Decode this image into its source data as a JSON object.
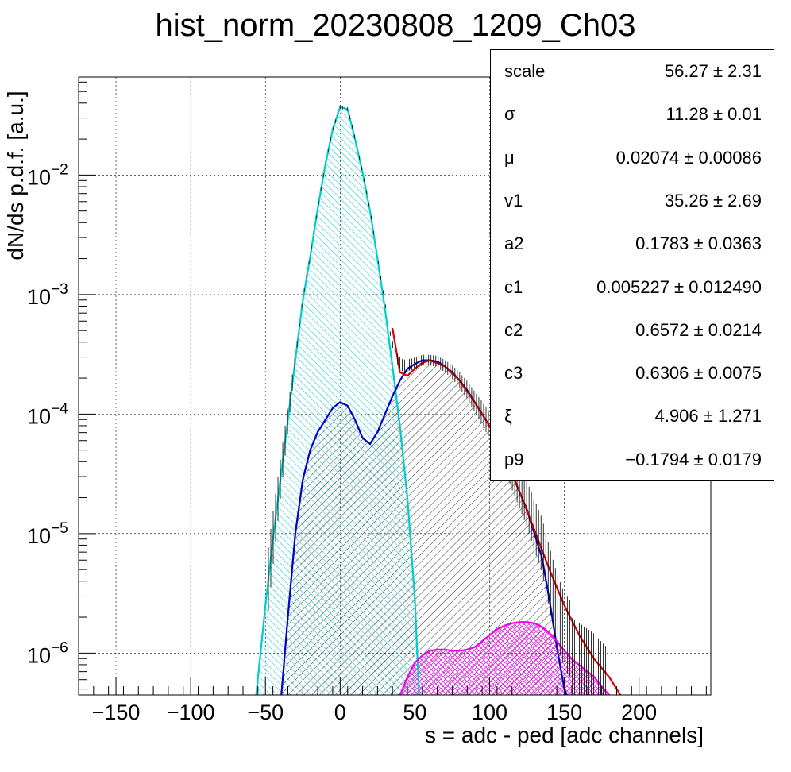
{
  "chart_data": {
    "type": "line",
    "title": "hist_norm_20230808_1209_Ch03",
    "xlabel": "s = adc - ped [adc channels]",
    "ylabel": "dN/ds p.d.f. [a.u.]",
    "xlim": [
      -175,
      248
    ],
    "ylim_log10": [
      -6.35,
      -1.18
    ],
    "log_y": true,
    "grid": true,
    "x_ticks": [
      -150,
      -100,
      -50,
      0,
      50,
      100,
      150,
      200
    ],
    "x_tick_labels": [
      "−150",
      "−100",
      "−50",
      "0",
      "50",
      "100",
      "150",
      "200"
    ],
    "y_ticks": [
      {
        "exp": -2,
        "base": "10",
        "power": "−2"
      },
      {
        "exp": -3,
        "base": "10",
        "power": "−3"
      },
      {
        "exp": -4,
        "base": "10",
        "power": "−4"
      },
      {
        "exp": -5,
        "base": "10",
        "power": "−5"
      },
      {
        "exp": -6,
        "base": "10",
        "power": "−6"
      }
    ],
    "series": [
      {
        "color": "#00cccc",
        "style": "hatched-fill",
        "points": [
          [
            -57,
            -6.45
          ],
          [
            -50,
            -5.6
          ],
          [
            -45,
            -5.05
          ],
          [
            -40,
            -4.55
          ],
          [
            -35,
            -4.05
          ],
          [
            -30,
            -3.55
          ],
          [
            -25,
            -3.05
          ],
          [
            -20,
            -2.68
          ],
          [
            -15,
            -2.28
          ],
          [
            -10,
            -1.92
          ],
          [
            -5,
            -1.62
          ],
          [
            0,
            -1.43
          ],
          [
            5,
            -1.45
          ],
          [
            10,
            -1.7
          ],
          [
            15,
            -1.98
          ],
          [
            20,
            -2.3
          ],
          [
            25,
            -2.7
          ],
          [
            30,
            -3.12
          ],
          [
            35,
            -3.6
          ],
          [
            40,
            -4.1
          ],
          [
            45,
            -4.7
          ],
          [
            50,
            -5.55
          ],
          [
            53,
            -6.4
          ]
        ]
      },
      {
        "color": "#0000cc",
        "style": "hatched-fill",
        "points": [
          [
            -40,
            -6.45
          ],
          [
            -35,
            -5.7
          ],
          [
            -30,
            -5.0
          ],
          [
            -25,
            -4.55
          ],
          [
            -20,
            -4.3
          ],
          [
            -15,
            -4.15
          ],
          [
            -10,
            -4.05
          ],
          [
            -5,
            -3.95
          ],
          [
            0,
            -3.9
          ],
          [
            5,
            -3.93
          ],
          [
            10,
            -4.05
          ],
          [
            15,
            -4.2
          ],
          [
            20,
            -4.25
          ],
          [
            25,
            -4.15
          ],
          [
            30,
            -4.0
          ],
          [
            35,
            -3.85
          ],
          [
            40,
            -3.72
          ],
          [
            45,
            -3.62
          ],
          [
            50,
            -3.58
          ],
          [
            55,
            -3.55
          ],
          [
            60,
            -3.55
          ],
          [
            65,
            -3.56
          ],
          [
            70,
            -3.6
          ],
          [
            75,
            -3.65
          ],
          [
            80,
            -3.72
          ],
          [
            85,
            -3.8
          ],
          [
            90,
            -3.9
          ],
          [
            95,
            -4.0
          ],
          [
            100,
            -4.1
          ],
          [
            105,
            -4.22
          ],
          [
            110,
            -4.35
          ],
          [
            115,
            -4.5
          ],
          [
            120,
            -4.65
          ],
          [
            125,
            -4.8
          ],
          [
            130,
            -5.0
          ],
          [
            135,
            -5.2
          ],
          [
            140,
            -5.55
          ],
          [
            145,
            -5.95
          ],
          [
            150,
            -6.3
          ],
          [
            155,
            -6.45
          ]
        ]
      },
      {
        "color": "#ee00ee",
        "style": "crosshatched-fill",
        "points": [
          [
            37,
            -6.45
          ],
          [
            45,
            -6.2
          ],
          [
            50,
            -6.08
          ],
          [
            55,
            -6.02
          ],
          [
            60,
            -5.98
          ],
          [
            65,
            -5.97
          ],
          [
            70,
            -5.97
          ],
          [
            75,
            -5.98
          ],
          [
            80,
            -5.98
          ],
          [
            85,
            -5.97
          ],
          [
            90,
            -5.95
          ],
          [
            95,
            -5.9
          ],
          [
            100,
            -5.85
          ],
          [
            105,
            -5.8
          ],
          [
            110,
            -5.77
          ],
          [
            115,
            -5.75
          ],
          [
            120,
            -5.74
          ],
          [
            125,
            -5.74
          ],
          [
            130,
            -5.75
          ],
          [
            135,
            -5.78
          ],
          [
            140,
            -5.83
          ],
          [
            145,
            -5.9
          ],
          [
            150,
            -5.98
          ],
          [
            155,
            -6.05
          ],
          [
            160,
            -6.1
          ],
          [
            165,
            -6.15
          ],
          [
            170,
            -6.2
          ],
          [
            175,
            -6.28
          ],
          [
            180,
            -6.35
          ],
          [
            185,
            -6.42
          ]
        ]
      },
      {
        "color": "#dd0000",
        "style": "line",
        "points": [
          [
            35,
            -3.28
          ],
          [
            38,
            -3.5
          ],
          [
            40,
            -3.65
          ],
          [
            45,
            -3.68
          ],
          [
            50,
            -3.62
          ],
          [
            55,
            -3.57
          ],
          [
            60,
            -3.55
          ],
          [
            70,
            -3.6
          ],
          [
            80,
            -3.72
          ],
          [
            90,
            -3.9
          ],
          [
            100,
            -4.1
          ],
          [
            110,
            -4.35
          ],
          [
            120,
            -4.65
          ],
          [
            130,
            -4.97
          ],
          [
            140,
            -5.3
          ],
          [
            150,
            -5.6
          ],
          [
            160,
            -5.85
          ],
          [
            170,
            -6.05
          ],
          [
            180,
            -6.2
          ],
          [
            190,
            -6.4
          ]
        ]
      }
    ],
    "stats_box": {
      "rows": [
        {
          "name": "scale",
          "value": "56.27 ± 2.31"
        },
        {
          "name": "σ",
          "value": "11.28 ± 0.01"
        },
        {
          "name": "μ",
          "value": "0.02074 ± 0.00086"
        },
        {
          "name": "v1",
          "value": "35.26 ± 2.69"
        },
        {
          "name": "a2",
          "value": "0.1783 ± 0.0363"
        },
        {
          "name": "c1",
          "value": "0.005227 ± 0.012490"
        },
        {
          "name": "c2",
          "value": "0.6572 ± 0.0214"
        },
        {
          "name": "c3",
          "value": "0.6306 ± 0.0075"
        },
        {
          "name": "ξ",
          "value": "4.906 ± 1.271"
        },
        {
          "name": "p9",
          "value": "−0.1794 ± 0.0179"
        }
      ]
    }
  }
}
